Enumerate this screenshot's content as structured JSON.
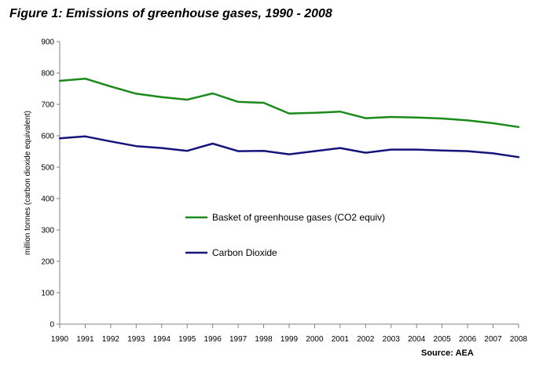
{
  "title": "Figure 1: Emissions of greenhouse gases, 1990 - 2008",
  "source": "Source: AEA",
  "chart_data": {
    "type": "line",
    "ylabel": "million tonnes (carbon dioxide equivalent)",
    "xlabel": "",
    "ylim": [
      0,
      900
    ],
    "yticks": [
      0,
      100,
      200,
      300,
      400,
      500,
      600,
      700,
      800,
      900
    ],
    "categories": [
      "1990",
      "1991",
      "1992",
      "1993",
      "1994",
      "1995",
      "1996",
      "1997",
      "1998",
      "1999",
      "2000",
      "2001",
      "2002",
      "2003",
      "2004",
      "2005",
      "2006",
      "2007",
      "2008"
    ],
    "grid": false,
    "legend_position": "center",
    "series": [
      {
        "name": "Basket of greenhouse gases (CO2 equiv)",
        "color": "#1a8a1a",
        "values": [
          775,
          782,
          757,
          734,
          723,
          715,
          735,
          708,
          705,
          671,
          673,
          677,
          656,
          660,
          658,
          655,
          649,
          640,
          628
        ]
      },
      {
        "name": "Carbon Dioxide",
        "color": "#14147a",
        "values": [
          592,
          598,
          582,
          567,
          561,
          552,
          575,
          551,
          552,
          541,
          551,
          561,
          546,
          556,
          556,
          553,
          551,
          544,
          532
        ]
      }
    ]
  }
}
